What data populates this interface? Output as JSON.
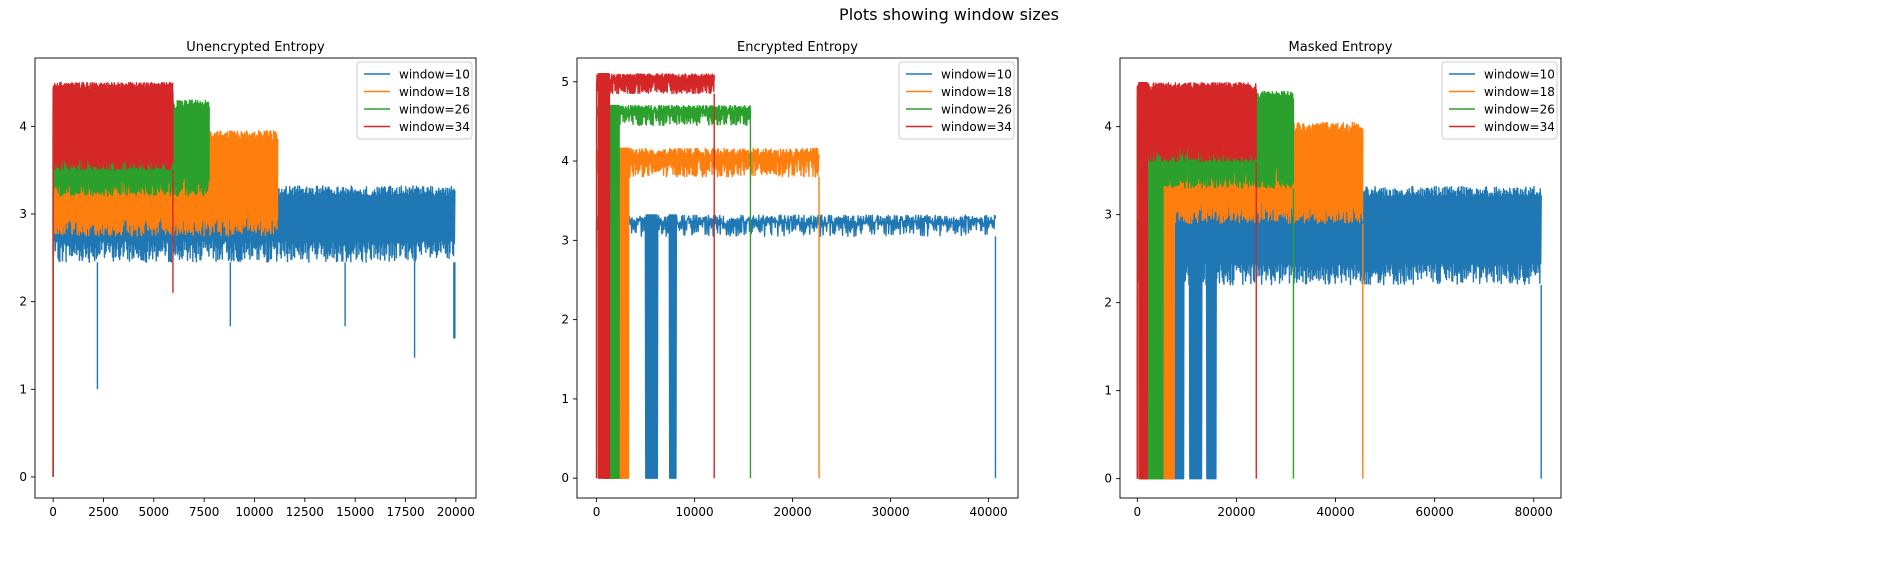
{
  "figure": {
    "suptitle": "Plots showing window sizes"
  },
  "legend_colors": {
    "window=10": "#1f77b4",
    "window=18": "#ff7f0e",
    "window=26": "#2ca02c",
    "window=34": "#d62728"
  },
  "chart_data": [
    {
      "type": "line",
      "title": "Unencrypted Entropy",
      "xlabel": "",
      "ylabel": "",
      "xlim": [
        -900,
        21000
      ],
      "ylim": [
        -0.24,
        4.78
      ],
      "xticks": [
        0,
        2500,
        5000,
        7500,
        10000,
        12500,
        15000,
        17500,
        20000
      ],
      "yticks": [
        0,
        1,
        2,
        3,
        4
      ],
      "legend": "upper right",
      "grid": false,
      "series": [
        {
          "name": "window=10",
          "color": "#1f77b4",
          "start": [
            0,
            0.0
          ],
          "end_x": 19950,
          "lo": 2.45,
          "hi": 3.32,
          "spikes": [
            [
              2200,
              1.0
            ],
            [
              8800,
              1.72
            ],
            [
              14500,
              1.72
            ],
            [
              17950,
              1.36
            ],
            [
              19900,
              1.58
            ]
          ],
          "end": [
            19950,
            1.58
          ]
        },
        {
          "name": "window=18",
          "color": "#ff7f0e",
          "start": [
            0,
            0.0
          ],
          "end_x": 11150,
          "lo": 2.75,
          "hi": 3.95
        },
        {
          "name": "window=26",
          "color": "#2ca02c",
          "start": [
            0,
            0.0
          ],
          "end_x": 7750,
          "lo": 3.2,
          "hi": 4.3
        },
        {
          "name": "window=34",
          "color": "#d62728",
          "start": [
            0,
            0.0
          ],
          "end_x": 5950,
          "lo": 3.5,
          "hi": 4.5,
          "end": [
            5950,
            2.1
          ]
        }
      ]
    },
    {
      "type": "line",
      "title": "Encrypted Entropy",
      "xlabel": "",
      "ylabel": "",
      "xlim": [
        -2000,
        43000
      ],
      "ylim": [
        -0.25,
        5.3
      ],
      "xticks": [
        0,
        10000,
        20000,
        30000,
        40000
      ],
      "yticks": [
        0,
        1,
        2,
        3,
        4,
        5
      ],
      "legend": "upper right",
      "grid": false,
      "series": [
        {
          "name": "window=10",
          "color": "#1f77b4",
          "start": [
            0,
            0.0
          ],
          "end_x": 40700,
          "lo": 3.05,
          "hi": 3.32,
          "gaps": [
            [
              600,
              2600
            ],
            [
              5000,
              6200
            ],
            [
              7400,
              8100
            ]
          ],
          "end": [
            40700,
            0.0
          ]
        },
        {
          "name": "window=18",
          "color": "#ff7f0e",
          "start": [
            0,
            0.0
          ],
          "end_x": 22700,
          "lo": 3.8,
          "hi": 4.16,
          "gaps": [
            [
              1000,
              3300
            ]
          ],
          "end": [
            22700,
            0.0
          ]
        },
        {
          "name": "window=26",
          "color": "#2ca02c",
          "start": [
            0,
            0.0
          ],
          "end_x": 15700,
          "lo": 4.45,
          "hi": 4.7,
          "gaps": [
            [
              700,
              2300
            ]
          ],
          "end": [
            15700,
            0.0
          ]
        },
        {
          "name": "window=34",
          "color": "#d62728",
          "start": [
            0,
            0.0
          ],
          "end_x": 12000,
          "lo": 4.85,
          "hi": 5.1,
          "gaps": [
            [
              200,
              1300
            ]
          ],
          "end": [
            12000,
            0.0
          ]
        }
      ]
    },
    {
      "type": "line",
      "title": "Masked Entropy",
      "xlabel": "",
      "ylabel": "",
      "xlim": [
        -3500,
        85500
      ],
      "ylim": [
        -0.22,
        4.78
      ],
      "xticks": [
        0,
        20000,
        40000,
        60000,
        80000
      ],
      "yticks": [
        0,
        1,
        2,
        3,
        4
      ],
      "legend": "upper right",
      "grid": false,
      "series": [
        {
          "name": "window=10",
          "color": "#1f77b4",
          "start": [
            0,
            0.0
          ],
          "end_x": 81500,
          "lo": 2.2,
          "hi": 3.32,
          "gaps": [
            [
              1500,
              9500
            ],
            [
              10500,
              13000
            ],
            [
              14000,
              16000
            ]
          ],
          "end": [
            81500,
            0.0
          ]
        },
        {
          "name": "window=18",
          "color": "#ff7f0e",
          "start": [
            0,
            0.0
          ],
          "end_x": 45500,
          "lo": 2.9,
          "hi": 4.05,
          "gaps": [
            [
              800,
              7500
            ]
          ],
          "end": [
            45500,
            0.0
          ]
        },
        {
          "name": "window=26",
          "color": "#2ca02c",
          "start": [
            0,
            0.0
          ],
          "end_x": 31500,
          "lo": 3.3,
          "hi": 4.4,
          "gaps": [
            [
              500,
              5200
            ]
          ],
          "end": [
            31500,
            0.0
          ]
        },
        {
          "name": "window=34",
          "color": "#d62728",
          "start": [
            0,
            0.0
          ],
          "end_x": 24000,
          "lo": 3.6,
          "hi": 4.5,
          "gaps": [
            [
              300,
              2000
            ]
          ],
          "end": [
            24000,
            0.0
          ]
        }
      ]
    }
  ]
}
